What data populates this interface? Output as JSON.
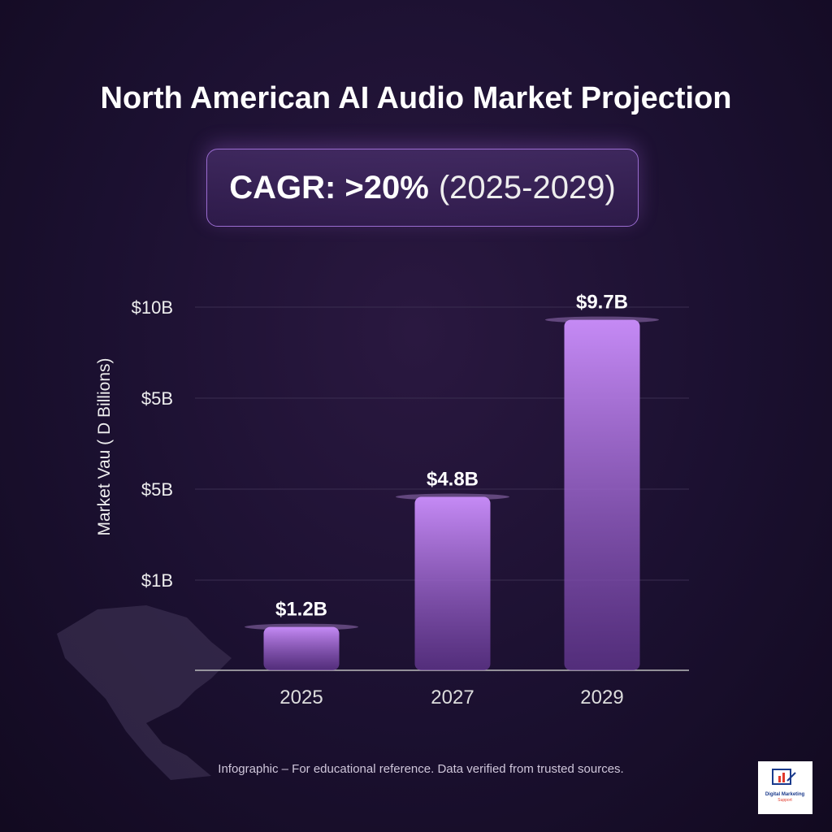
{
  "title": "North American AI Audio Market Projection",
  "cagr": {
    "label": "CAGR: >20%",
    "range": "(2025-2029)"
  },
  "footer": "Infographic – For educational reference. Data verified from trusted sources.",
  "logo": {
    "text": "Digital Marketing Support",
    "colors": [
      "#1a3a8c",
      "#e0392b"
    ]
  },
  "colors": {
    "bar": "#a160e0",
    "bar_top": "#c58af5",
    "background": "#1b1030",
    "grid": "#3a2d50"
  },
  "chart_data": {
    "type": "bar",
    "title": "North American AI Audio Market Projection",
    "categories": [
      "2025",
      "2027",
      "2029"
    ],
    "values": [
      1.2,
      4.8,
      9.7
    ],
    "data_labels": [
      "$1.2B",
      "$4.8B",
      "$9.7B"
    ],
    "ylabel": "Market Vau ( D Billions)",
    "yticks": [
      "$1B",
      "$5B",
      "$5B",
      "$10B"
    ],
    "ylim": [
      0,
      10.5
    ],
    "grid": true
  }
}
